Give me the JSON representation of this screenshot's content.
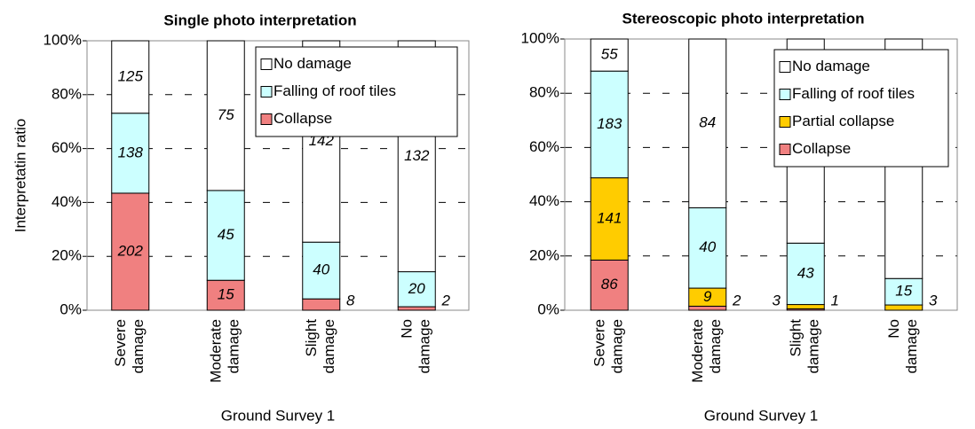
{
  "chart_data": [
    {
      "type": "bar",
      "stacked": "percent",
      "title": "Single photo interpretation",
      "x_label": "Ground Survey 1",
      "y_label": "Interpretatin ratio",
      "categories": [
        [
          "Severe",
          "damage"
        ],
        [
          "Moderate",
          "damage"
        ],
        [
          "Slight",
          "damage"
        ],
        [
          "No",
          "damage"
        ]
      ],
      "series": [
        {
          "name": "Collapse",
          "color": "#f08080",
          "values": [
            202,
            15,
            8,
            2
          ]
        },
        {
          "name": "Falling of roof tiles",
          "color": "#ccffff",
          "values": [
            138,
            45,
            40,
            20
          ]
        },
        {
          "name": "No damage",
          "color": "#ffffff",
          "values": [
            125,
            75,
            142,
            132
          ]
        }
      ],
      "ylim": [
        0,
        100
      ],
      "yticks": [
        {
          "value": 0,
          "label": "0%"
        },
        {
          "value": 20,
          "label": "20%"
        },
        {
          "value": 40,
          "label": "40%"
        },
        {
          "value": 60,
          "label": "60%"
        },
        {
          "value": 80,
          "label": "80%"
        },
        {
          "value": 100,
          "label": "100%"
        }
      ],
      "grid": true,
      "legend": "upper right"
    },
    {
      "type": "bar",
      "stacked": "percent",
      "title": "Stereoscopic photo interpretation",
      "x_label": "Ground Survey 1",
      "categories": [
        [
          "Severe",
          "damage"
        ],
        [
          "Moderate",
          "damage"
        ],
        [
          "Slight",
          "damage"
        ],
        [
          "No",
          "damage"
        ]
      ],
      "series": [
        {
          "name": "Collapse",
          "color": "#f08080",
          "values": [
            86,
            2,
            1,
            null
          ]
        },
        {
          "name": "Partial collapse",
          "color": "#ffcc00",
          "values": [
            141,
            9,
            3,
            3
          ]
        },
        {
          "name": "Falling of roof tiles",
          "color": "#ccffff",
          "values": [
            183,
            40,
            43,
            15
          ]
        },
        {
          "name": "No damage",
          "color": "#ffffff",
          "values": [
            55,
            84,
            143,
            136
          ]
        }
      ],
      "ylim": [
        0,
        100
      ],
      "yticks": [
        {
          "value": 0,
          "label": "0%"
        },
        {
          "value": 20,
          "label": "20%"
        },
        {
          "value": 40,
          "label": "40%"
        },
        {
          "value": 60,
          "label": "60%"
        },
        {
          "value": 80,
          "label": "80%"
        },
        {
          "value": 100,
          "label": "100%"
        }
      ],
      "grid": true,
      "legend": "upper right"
    }
  ]
}
